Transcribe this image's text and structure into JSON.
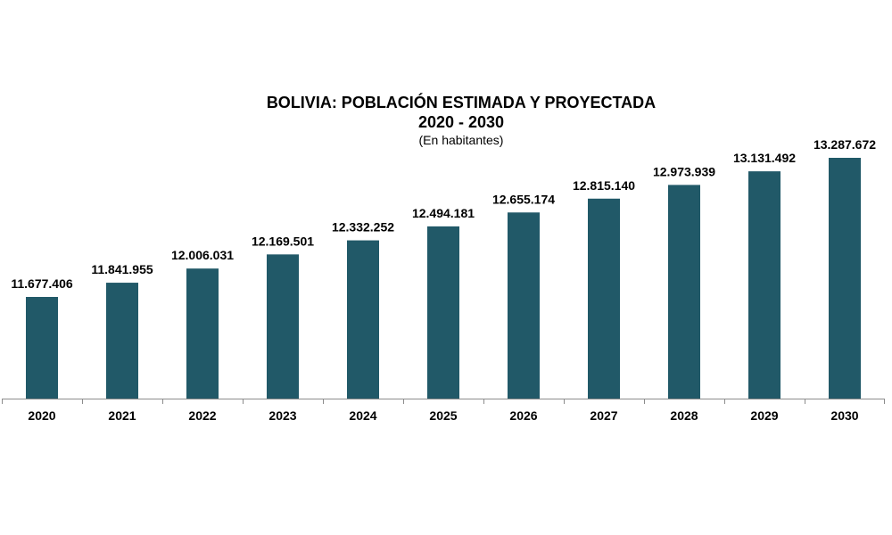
{
  "chart_data": {
    "type": "bar",
    "title": "BOLIVIA: POBLACIÓN ESTIMADA Y PROYECTADA",
    "subtitle": "2020 - 2030",
    "units_note": "(En habitantes)",
    "xlabel": "",
    "ylabel": "",
    "categories": [
      "2020",
      "2021",
      "2022",
      "2023",
      "2024",
      "2025",
      "2026",
      "2027",
      "2028",
      "2029",
      "2030"
    ],
    "values": [
      11677406,
      11841955,
      12006031,
      12169501,
      12332252,
      12494181,
      12655174,
      12815140,
      12973939,
      13131492,
      13287672
    ],
    "value_labels": [
      "11.677.406",
      "11.841.955",
      "12.006.031",
      "12.169.501",
      "12.332.252",
      "12.494.181",
      "12.655.174",
      "12.815.140",
      "12.973.939",
      "13.131.492",
      "13.287.672"
    ],
    "bar_color": "#215968",
    "grid": false,
    "legend": "none"
  }
}
